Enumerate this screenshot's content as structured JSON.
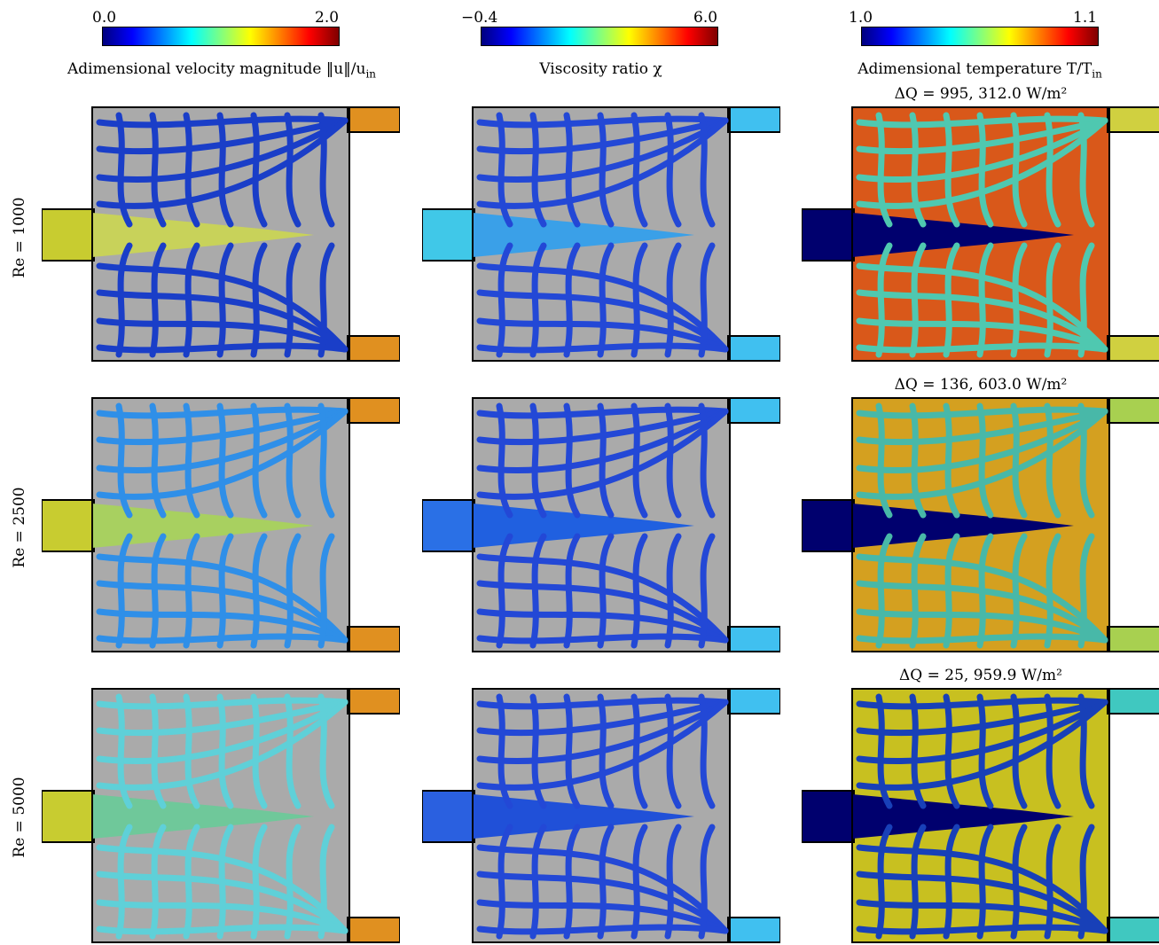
{
  "colorbars": [
    {
      "min": "0.0",
      "max": "2.0",
      "label": "Adimensional velocity magnitude ‖u‖/u",
      "label_sub": "in"
    },
    {
      "min": "−0.4",
      "max": "6.0",
      "label": "Viscosity ratio χ",
      "label_sub": ""
    },
    {
      "min": "1.0",
      "max": "1.1",
      "label": "Adimensional temperature T/T",
      "label_sub": "in"
    }
  ],
  "rows": [
    {
      "re_label": "Re = 1000",
      "dq": "ΔQ = 995, 312.0 W/m²"
    },
    {
      "re_label": "Re = 2500",
      "dq": "ΔQ = 136, 603.0 W/m²"
    },
    {
      "re_label": "Re = 5000",
      "dq": "ΔQ = 25, 959.9 W/m²"
    }
  ],
  "colors": {
    "solid_gray": "#aaaaaa",
    "velocity_bg_channel": "#1f5fd0",
    "viscosity_channel": "#2a4fd8",
    "temp_hot": "#d9581a",
    "temp_cold": "#00006e"
  }
}
